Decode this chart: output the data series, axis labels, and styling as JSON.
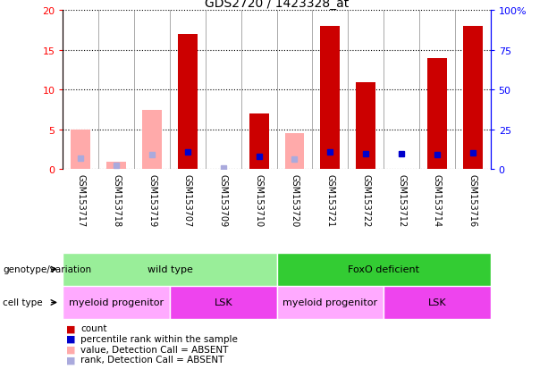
{
  "title": "GDS2720 / 1423328_at",
  "samples": [
    "GSM153717",
    "GSM153718",
    "GSM153719",
    "GSM153707",
    "GSM153709",
    "GSM153710",
    "GSM153720",
    "GSM153721",
    "GSM153722",
    "GSM153712",
    "GSM153714",
    "GSM153716"
  ],
  "count_values": [
    0,
    0,
    0,
    17,
    0,
    7,
    0,
    18,
    11,
    0,
    14,
    18
  ],
  "rank_values": [
    0,
    0,
    0,
    11,
    0,
    8,
    0,
    11,
    10,
    10,
    9,
    10.5
  ],
  "absent_count": [
    5,
    1,
    7.5,
    0,
    0,
    0,
    4.5,
    0,
    0,
    0,
    0,
    0
  ],
  "absent_rank": [
    7,
    2.5,
    9.5,
    0,
    1,
    0,
    6.5,
    0,
    0,
    10,
    0,
    0
  ],
  "is_absent_count": [
    true,
    true,
    true,
    false,
    false,
    false,
    true,
    false,
    false,
    false,
    false,
    false
  ],
  "is_absent_rank": [
    true,
    true,
    true,
    false,
    true,
    false,
    true,
    false,
    false,
    false,
    false,
    false
  ],
  "ylim_left": [
    0,
    20
  ],
  "ylim_right": [
    0,
    100
  ],
  "yticks_left": [
    0,
    5,
    10,
    15,
    20
  ],
  "yticks_right": [
    0,
    25,
    50,
    75,
    100
  ],
  "ytick_labels_right": [
    "0",
    "25",
    "50",
    "75",
    "100%"
  ],
  "color_count_present": "#cc0000",
  "color_rank_present": "#0000cc",
  "color_count_absent": "#ffaaaa",
  "color_rank_absent": "#aaaadd",
  "genotype_groups": [
    {
      "label": "wild type",
      "start": 0,
      "end": 5,
      "color": "#99ee99"
    },
    {
      "label": "FoxO deficient",
      "start": 6,
      "end": 11,
      "color": "#33cc33"
    }
  ],
  "cell_type_groups": [
    {
      "label": "myeloid progenitor",
      "start": 0,
      "end": 2,
      "color": "#ffaaff"
    },
    {
      "label": "LSK",
      "start": 3,
      "end": 5,
      "color": "#ee44ee"
    },
    {
      "label": "myeloid progenitor",
      "start": 6,
      "end": 8,
      "color": "#ffaaff"
    },
    {
      "label": "LSK",
      "start": 9,
      "end": 11,
      "color": "#ee44ee"
    }
  ],
  "legend_items": [
    {
      "label": "count",
      "color": "#cc0000"
    },
    {
      "label": "percentile rank within the sample",
      "color": "#0000cc"
    },
    {
      "label": "value, Detection Call = ABSENT",
      "color": "#ffaaaa"
    },
    {
      "label": "rank, Detection Call = ABSENT",
      "color": "#aaaadd"
    }
  ],
  "bg_color": "#cccccc"
}
